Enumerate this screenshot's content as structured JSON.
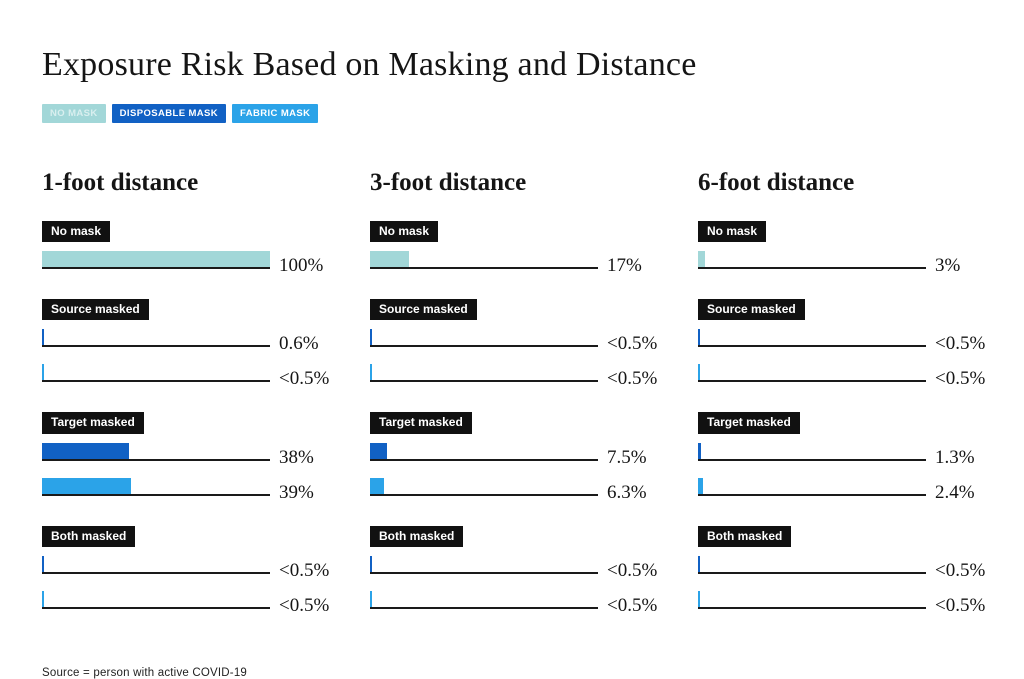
{
  "title": "Exposure Risk Based on Masking and Distance",
  "footnote": "Source = person with active COVID-19",
  "legend": [
    {
      "label": "NO MASK",
      "bg": "#a2d7d8",
      "text_color": "#d9efef"
    },
    {
      "label": "DISPOSABLE MASK",
      "bg": "#1161c4",
      "text_color": "#ffffff"
    },
    {
      "label": "FABRIC MASK",
      "bg": "#2ba3e8",
      "text_color": "#ffffff"
    }
  ],
  "chart_data": {
    "type": "bar",
    "title": "Exposure Risk Based on Masking and Distance",
    "unit": "exposure risk (%)",
    "xlim": [
      0,
      100
    ],
    "orientation": "horizontal",
    "grid": false,
    "legend_position": "top-left",
    "series_colors": {
      "no_mask": "#a2d7d8",
      "disposable_mask": "#1161c4",
      "fabric_mask": "#2ba3e8"
    },
    "columns": [
      {
        "heading": "1-foot distance",
        "groups": [
          {
            "label": "No mask",
            "bars": [
              {
                "series": "no_mask",
                "display": "100%",
                "value": 100
              }
            ]
          },
          {
            "label": "Source masked",
            "bars": [
              {
                "series": "disposable_mask",
                "display": "0.6%",
                "value": 0.6
              },
              {
                "series": "fabric_mask",
                "display": "<0.5%",
                "value": 0.4
              }
            ]
          },
          {
            "label": "Target masked",
            "bars": [
              {
                "series": "disposable_mask",
                "display": "38%",
                "value": 38
              },
              {
                "series": "fabric_mask",
                "display": "39%",
                "value": 39
              }
            ]
          },
          {
            "label": "Both masked",
            "bars": [
              {
                "series": "disposable_mask",
                "display": "<0.5%",
                "value": 0.4
              },
              {
                "series": "fabric_mask",
                "display": "<0.5%",
                "value": 0.4
              }
            ]
          }
        ]
      },
      {
        "heading": "3-foot distance",
        "groups": [
          {
            "label": "No mask",
            "bars": [
              {
                "series": "no_mask",
                "display": "17%",
                "value": 17
              }
            ]
          },
          {
            "label": "Source masked",
            "bars": [
              {
                "series": "disposable_mask",
                "display": "<0.5%",
                "value": 0.4
              },
              {
                "series": "fabric_mask",
                "display": "<0.5%",
                "value": 0.4
              }
            ]
          },
          {
            "label": "Target masked",
            "bars": [
              {
                "series": "disposable_mask",
                "display": "7.5%",
                "value": 7.5
              },
              {
                "series": "fabric_mask",
                "display": "6.3%",
                "value": 6.3
              }
            ]
          },
          {
            "label": "Both masked",
            "bars": [
              {
                "series": "disposable_mask",
                "display": "<0.5%",
                "value": 0.4
              },
              {
                "series": "fabric_mask",
                "display": "<0.5%",
                "value": 0.4
              }
            ]
          }
        ]
      },
      {
        "heading": "6-foot distance",
        "groups": [
          {
            "label": "No mask",
            "bars": [
              {
                "series": "no_mask",
                "display": "3%",
                "value": 3
              }
            ]
          },
          {
            "label": "Source masked",
            "bars": [
              {
                "series": "disposable_mask",
                "display": "<0.5%",
                "value": 0.4
              },
              {
                "series": "fabric_mask",
                "display": "<0.5%",
                "value": 0.4
              }
            ]
          },
          {
            "label": "Target masked",
            "bars": [
              {
                "series": "disposable_mask",
                "display": "1.3%",
                "value": 1.3
              },
              {
                "series": "fabric_mask",
                "display": "2.4%",
                "value": 2.4
              }
            ]
          },
          {
            "label": "Both masked",
            "bars": [
              {
                "series": "disposable_mask",
                "display": "<0.5%",
                "value": 0.4
              },
              {
                "series": "fabric_mask",
                "display": "<0.5%",
                "value": 0.4
              }
            ]
          }
        ]
      }
    ]
  }
}
